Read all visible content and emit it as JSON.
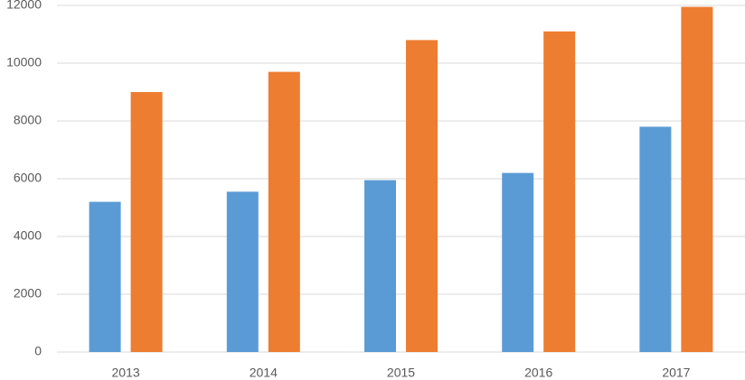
{
  "chart_data": {
    "type": "bar",
    "categories": [
      "2013",
      "2014",
      "2015",
      "2016",
      "2017"
    ],
    "series": [
      {
        "color": "#5b9bd5",
        "values": [
          5200,
          5550,
          5950,
          6200,
          7800
        ]
      },
      {
        "color": "#ed7d31",
        "values": [
          9000,
          9700,
          10800,
          11100,
          11950
        ]
      }
    ],
    "ylim": [
      0,
      12000
    ],
    "yticks": [
      0,
      2000,
      4000,
      6000,
      8000,
      10000,
      12000
    ],
    "grid": true
  }
}
